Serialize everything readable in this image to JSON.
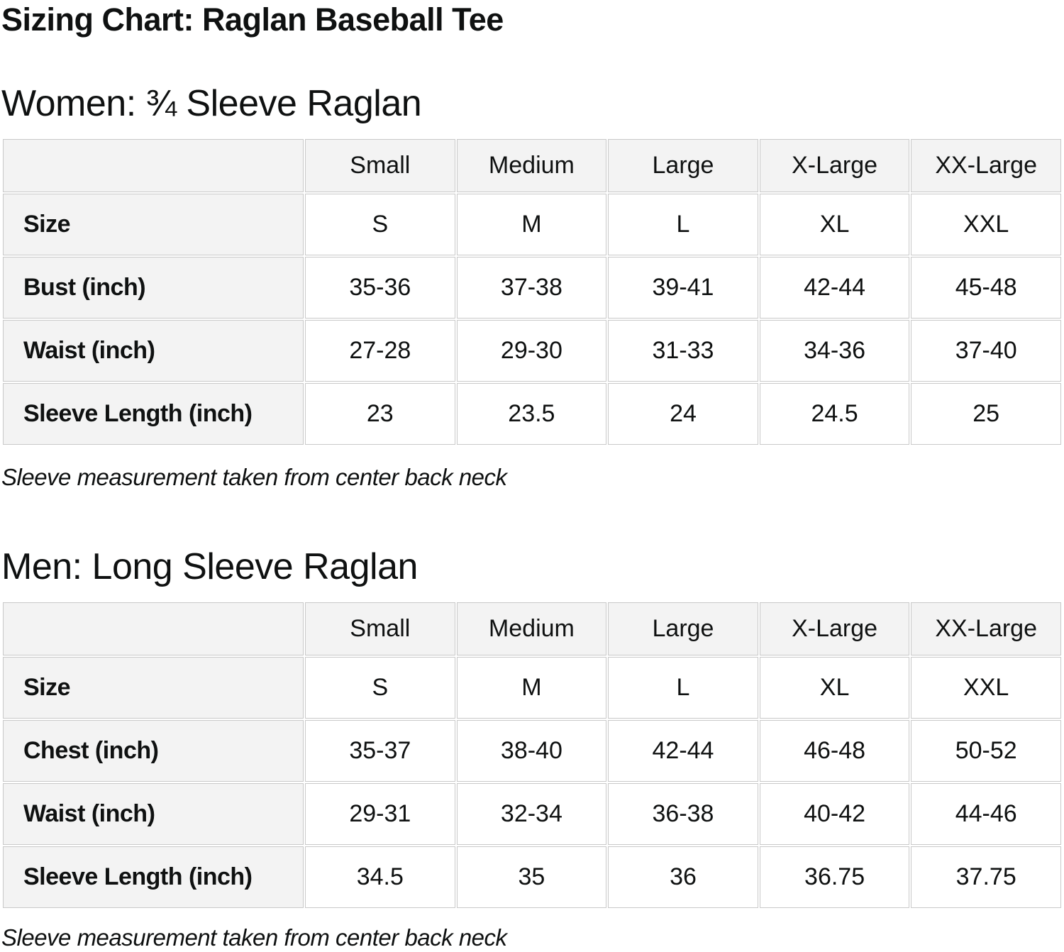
{
  "page": {
    "title": "Sizing Chart: Raglan Baseball Tee"
  },
  "colors": {
    "text": "#0f1111",
    "cell_header_bg": "#f3f3f3",
    "cell_border": "#c9c9c9",
    "background": "#ffffff"
  },
  "sections": [
    {
      "heading": "Women: ¾ Sleeve Raglan",
      "note": "Sleeve measurement taken from center back neck",
      "table": {
        "column_headers": [
          "",
          "Small",
          "Medium",
          "Large",
          "X-Large",
          "XX-Large"
        ],
        "rows": [
          {
            "label": "Size",
            "values": [
              "S",
              "M",
              "L",
              "XL",
              "XXL"
            ]
          },
          {
            "label": "Bust (inch)",
            "values": [
              "35-36",
              "37-38",
              "39-41",
              "42-44",
              "45-48"
            ]
          },
          {
            "label": "Waist (inch)",
            "values": [
              "27-28",
              "29-30",
              "31-33",
              "34-36",
              "37-40"
            ]
          },
          {
            "label": "Sleeve Length (inch)",
            "values": [
              "23",
              "23.5",
              "24",
              "24.5",
              "25"
            ]
          }
        ]
      }
    },
    {
      "heading": "Men: Long Sleeve Raglan",
      "note": "Sleeve measurement taken from center back neck",
      "table": {
        "column_headers": [
          "",
          "Small",
          "Medium",
          "Large",
          "X-Large",
          "XX-Large"
        ],
        "rows": [
          {
            "label": "Size",
            "values": [
              "S",
              "M",
              "L",
              "XL",
              "XXL"
            ]
          },
          {
            "label": "Chest (inch)",
            "values": [
              "35-37",
              "38-40",
              "42-44",
              "46-48",
              "50-52"
            ]
          },
          {
            "label": "Waist (inch)",
            "values": [
              "29-31",
              "32-34",
              "36-38",
              "40-42",
              "44-46"
            ]
          },
          {
            "label": "Sleeve Length (inch)",
            "values": [
              "34.5",
              "35",
              "36",
              "36.75",
              "37.75"
            ]
          }
        ]
      }
    }
  ]
}
